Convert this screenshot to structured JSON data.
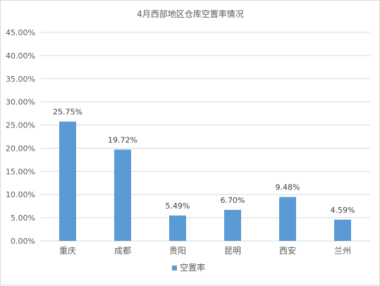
{
  "chart_data": {
    "type": "bar",
    "title": "4月西部地区仓库空置率情况",
    "categories": [
      "重庆",
      "成都",
      "贵阳",
      "昆明",
      "西安",
      "兰州"
    ],
    "series": [
      {
        "name": "空置率",
        "values": [
          25.75,
          19.72,
          5.49,
          6.7,
          9.48,
          4.59
        ],
        "labels": [
          "25.75%",
          "19.72%",
          "5.49%",
          "6.70%",
          "9.48%",
          "4.59%"
        ],
        "color": "#5b9bd5"
      }
    ],
    "ylim": [
      0,
      45
    ],
    "yticks": [
      "0.00%",
      "5.00%",
      "10.00%",
      "15.00%",
      "20.00%",
      "25.00%",
      "30.00%",
      "35.00%",
      "40.00%",
      "45.00%"
    ],
    "grid": true,
    "legend": "bottom",
    "gridColor": "#d9d9d9"
  }
}
